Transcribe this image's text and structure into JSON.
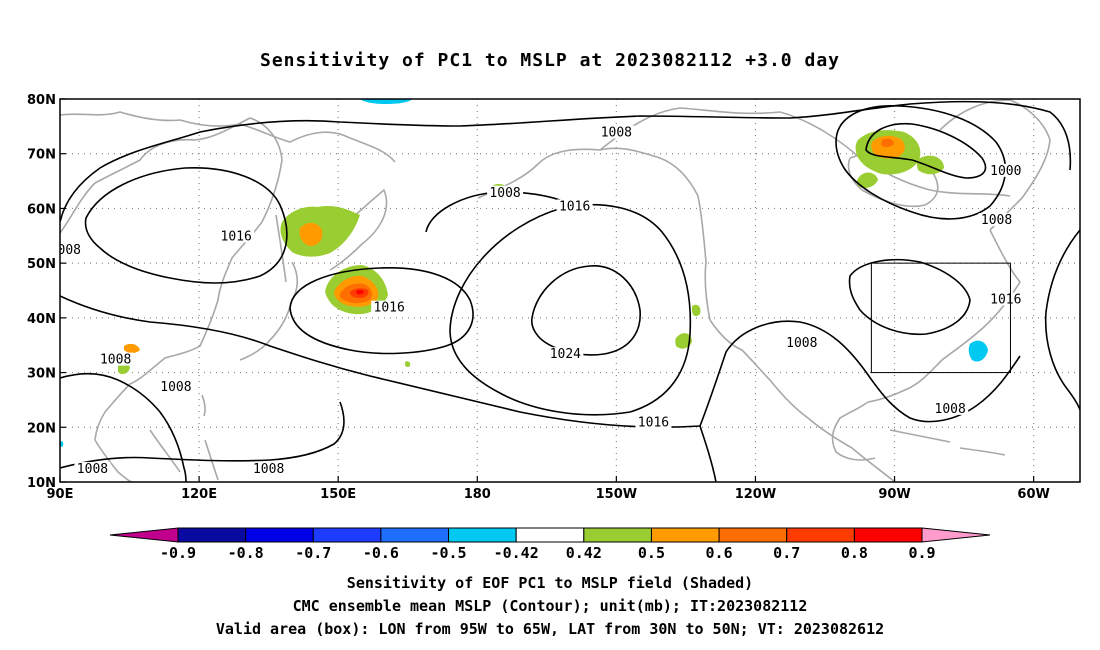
{
  "title": "Sensitivity of PC1 to MSLP at 2023082112 +3.0 day",
  "map": {
    "lon_ticks": [
      "90E",
      "120E",
      "150E",
      "180",
      "150W",
      "120W",
      "90W",
      "60W"
    ],
    "lat_ticks": [
      "10N",
      "20N",
      "30N",
      "40N",
      "50N",
      "60N",
      "70N",
      "80N"
    ],
    "lon_range": [
      90,
      310
    ],
    "lat_range": [
      10,
      80
    ],
    "grid": "dotted",
    "contour_labels": [
      {
        "text": "1008",
        "lon": 210,
        "lat": 73.5
      },
      {
        "text": "1000",
        "lon": 294,
        "lat": 66.5
      },
      {
        "text": "1008",
        "lon": 292,
        "lat": 57.5
      },
      {
        "text": "1008",
        "lon": 186,
        "lat": 62.5
      },
      {
        "text": "1016",
        "lon": 128,
        "lat": 54.5
      },
      {
        "text": "008",
        "lon": 92,
        "lat": 52
      },
      {
        "text": "1016",
        "lon": 201,
        "lat": 60
      },
      {
        "text": "1016",
        "lon": 161,
        "lat": 41.5
      },
      {
        "text": "1024",
        "lon": 199,
        "lat": 33
      },
      {
        "text": "1016",
        "lon": 294,
        "lat": 43
      },
      {
        "text": "1008",
        "lon": 250,
        "lat": 35
      },
      {
        "text": "1008",
        "lon": 102,
        "lat": 32
      },
      {
        "text": "1008",
        "lon": 115,
        "lat": 27
      },
      {
        "text": "1008",
        "lon": 282,
        "lat": 23
      },
      {
        "text": "1016",
        "lon": 218,
        "lat": 20.5
      },
      {
        "text": "1008",
        "lon": 97,
        "lat": 12
      },
      {
        "text": "1008",
        "lon": 135,
        "lat": 12
      }
    ],
    "valid_box": {
      "lon_min": 265,
      "lon_max": 295,
      "lat_min": 30,
      "lat_max": 50
    }
  },
  "colorbar": {
    "labels": [
      "-0.9",
      "-0.8",
      "-0.7",
      "-0.6",
      "-0.5",
      "-0.42",
      "0.42",
      "0.5",
      "0.6",
      "0.7",
      "0.8",
      "0.9"
    ],
    "colors": [
      "#c0008c",
      "#0a0aa0",
      "#0000e6",
      "#1e3cff",
      "#1e6eff",
      "#00c8f0",
      "#ffffff",
      "#9acd32",
      "#ff9a00",
      "#ff6e00",
      "#ff3c00",
      "#ff0000",
      "#ff9ccd"
    ]
  },
  "captions": [
    "Sensitivity of EOF PC1 to MSLP field (Shaded)",
    "CMC ensemble mean MSLP (Contour); unit(mb); IT:2023082112",
    "Valid area (box): LON from 95W to 65W, LAT from 30N to 50N; VT: 2023082612"
  ]
}
